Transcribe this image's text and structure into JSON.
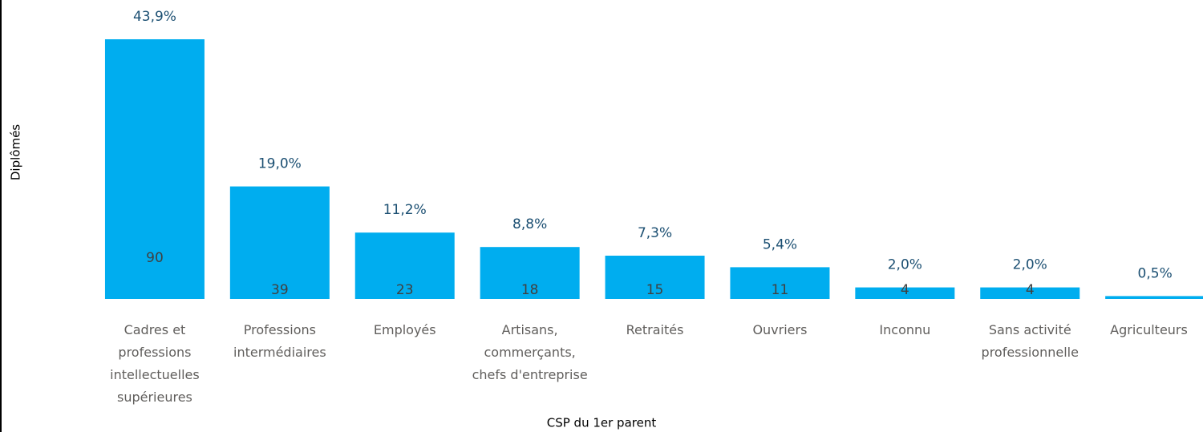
{
  "chart_data": {
    "type": "bar",
    "x_label": "CSP du 1er parent",
    "y_label": "Diplômés",
    "categories": [
      "Cadres et professions intellectuelles supérieures",
      "Professions intermédiaires",
      "Employés",
      "Artisans, commerçants, chefs d'entreprise",
      "Retraités",
      "Ouvriers",
      "Inconnu",
      "Sans activité professionnelle",
      "Agriculteurs"
    ],
    "values": [
      90,
      39,
      23,
      18,
      15,
      11,
      4,
      4,
      1
    ],
    "value_labels": [
      "90",
      "39",
      "23",
      "18",
      "15",
      "11",
      "4",
      "4",
      null
    ],
    "percentages": [
      43.9,
      19.0,
      11.2,
      8.8,
      7.3,
      5.4,
      2.0,
      2.0,
      0.5
    ],
    "percent_labels": [
      "43,9%",
      "19,0%",
      "11,2%",
      "8,8%",
      "7,3%",
      "5,4%",
      "2,0%",
      "2,0%",
      "0,5%"
    ],
    "color": "#00adef",
    "ylim": [
      0,
      90
    ]
  }
}
